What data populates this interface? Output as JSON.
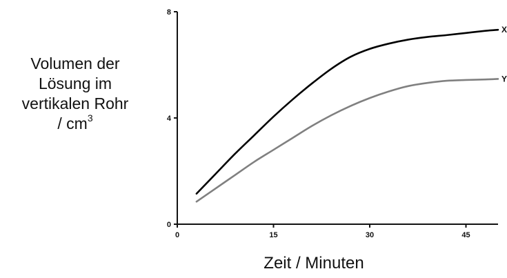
{
  "chart_data": {
    "type": "line",
    "xlabel": "Zeit / Minuten",
    "ylabel": {
      "line1": "Volumen der",
      "line2": "Lösung im",
      "line3": "vertikalen Rohr",
      "line4": "/ cm",
      "superscript": "3"
    },
    "xlim": [
      0,
      50
    ],
    "ylim": [
      0,
      8
    ],
    "x_ticks": [
      0,
      15,
      30,
      45
    ],
    "y_ticks": [
      0,
      4,
      8
    ],
    "grid": false,
    "legend": "none",
    "series": [
      {
        "name": "X",
        "color": "#000000",
        "x": [
          3,
          6,
          9,
          12,
          15,
          18,
          21,
          24,
          27,
          30,
          33,
          36,
          39,
          42,
          45,
          48,
          50
        ],
        "y": [
          1.15,
          1.9,
          2.65,
          3.35,
          4.05,
          4.7,
          5.3,
          5.85,
          6.3,
          6.6,
          6.8,
          6.95,
          7.05,
          7.12,
          7.2,
          7.28,
          7.32
        ]
      },
      {
        "name": "Y",
        "color": "#808080",
        "x": [
          3,
          6,
          9,
          12,
          15,
          18,
          21,
          24,
          27,
          30,
          33,
          36,
          39,
          42,
          45,
          48,
          50
        ],
        "y": [
          0.85,
          1.35,
          1.85,
          2.35,
          2.8,
          3.25,
          3.7,
          4.1,
          4.45,
          4.75,
          5.0,
          5.2,
          5.32,
          5.4,
          5.43,
          5.45,
          5.47
        ]
      }
    ]
  }
}
